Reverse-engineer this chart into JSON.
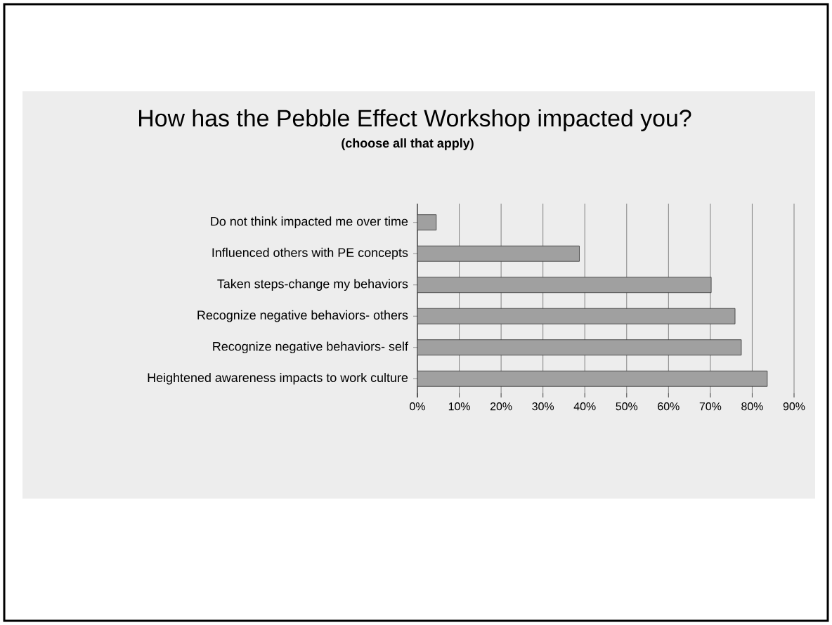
{
  "chart_data": {
    "type": "bar",
    "orientation": "horizontal",
    "title": "How has the Pebble Effect Workshop impacted you?",
    "subtitle": "(choose all that apply)",
    "categories": [
      "Do not think impacted me over time",
      "Influenced others with PE concepts",
      "Taken steps-change my behaviors",
      "Recognize negative behaviors- others",
      "Recognize negative behaviors- self",
      "Heightened awareness impacts to work culture"
    ],
    "values": [
      4.5,
      38.7,
      70.2,
      75.9,
      77.4,
      83.6
    ],
    "color": "#a0a0a0",
    "xlim": [
      0,
      90
    ],
    "xticks": [
      {
        "value": 0,
        "label": "0%"
      },
      {
        "value": 10,
        "label": "10%"
      },
      {
        "value": 20,
        "label": "20%"
      },
      {
        "value": 30,
        "label": "30%"
      },
      {
        "value": 40,
        "label": "40%"
      },
      {
        "value": 50,
        "label": "50%"
      },
      {
        "value": 60,
        "label": "60%"
      },
      {
        "value": 70,
        "label": "70%"
      },
      {
        "value": 80,
        "label": "80%"
      },
      {
        "value": 90,
        "label": "90%"
      }
    ],
    "grid": "x"
  }
}
